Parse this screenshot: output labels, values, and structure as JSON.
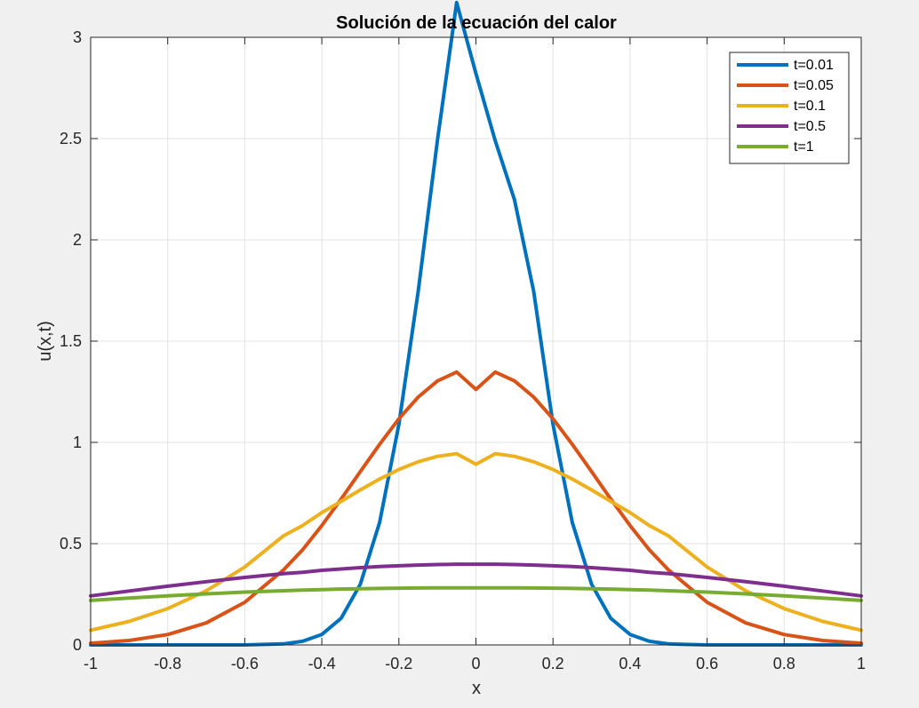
{
  "chart_data": {
    "type": "line",
    "title": "Solución de la ecuación del calor",
    "xlabel": "x",
    "ylabel": "u(x,t)",
    "xlim": [
      -1,
      1
    ],
    "ylim": [
      0,
      3
    ],
    "xticks": [
      -1,
      -0.8,
      -0.6,
      -0.4,
      -0.2,
      0,
      0.2,
      0.4,
      0.6,
      0.8,
      1
    ],
    "xtick_labels": [
      "-1",
      "-0.8",
      "-0.6",
      "-0.4",
      "-0.2",
      "0",
      "0.2",
      "0.4",
      "0.6",
      "0.8",
      "1"
    ],
    "yticks": [
      0,
      0.5,
      1,
      1.5,
      2,
      2.5,
      3
    ],
    "ytick_labels": [
      "0",
      "0.5",
      "1",
      "1.5",
      "2",
      "2.5",
      "3"
    ],
    "grid": true,
    "legend_position": "top-right",
    "x": [
      -1,
      -0.9,
      -0.8,
      -0.7,
      -0.6,
      -0.5,
      -0.45,
      -0.4,
      -0.35,
      -0.3,
      -0.25,
      -0.2,
      -0.15,
      -0.1,
      -0.05,
      0,
      0.05,
      0.1,
      0.15,
      0.2,
      0.25,
      0.3,
      0.35,
      0.4,
      0.45,
      0.5,
      0.6,
      0.7,
      0.8,
      0.9,
      1
    ],
    "series": [
      {
        "name": "t=0.01",
        "color": "#0072bd",
        "values": [
          0,
          0,
          0,
          0,
          0,
          0.0053,
          0.018,
          0.0516,
          0.1317,
          0.2994,
          0.6049,
          1.0886,
          1.7453,
          2.4923,
          3.1713,
          2.8209,
          2.4894,
          2.1973,
          1.7453,
          1.0886,
          0.6049,
          0.2994,
          0.1317,
          0.0516,
          0.018,
          0.0053,
          0,
          0,
          0,
          0,
          0
        ]
      },
      {
        "name": "t=0.05",
        "color": "#d95319",
        "values": [
          0.0085,
          0.0218,
          0.0511,
          0.1088,
          0.2106,
          0.3697,
          0.4694,
          0.5896,
          0.7201,
          0.8557,
          0.9905,
          1.1166,
          1.2236,
          1.3033,
          1.3475,
          1.2616,
          1.3475,
          1.3033,
          1.2236,
          1.1166,
          0.9905,
          0.8557,
          0.7201,
          0.5896,
          0.4694,
          0.3697,
          0.2106,
          0.1088,
          0.0511,
          0.0218,
          0.0085
        ]
      },
      {
        "name": "t=0.1",
        "color": "#edb120",
        "values": [
          0.0729,
          0.1164,
          0.1795,
          0.2671,
          0.3845,
          0.5383,
          0.5893,
          0.6537,
          0.7087,
          0.7652,
          0.8189,
          0.8663,
          0.9045,
          0.9311,
          0.9445,
          0.8921,
          0.9445,
          0.9311,
          0.9045,
          0.8663,
          0.8189,
          0.7652,
          0.7087,
          0.6537,
          0.5893,
          0.5383,
          0.3845,
          0.2671,
          0.1795,
          0.1164,
          0.0729
        ]
      },
      {
        "name": "t=0.5",
        "color": "#7e2f8e",
        "values": [
          0.242,
          0.2661,
          0.2897,
          0.3123,
          0.3332,
          0.3521,
          0.3584,
          0.3683,
          0.3752,
          0.3814,
          0.3867,
          0.391,
          0.3944,
          0.397,
          0.3985,
          0.3989,
          0.3985,
          0.397,
          0.3944,
          0.391,
          0.3867,
          0.3814,
          0.3752,
          0.3683,
          0.3584,
          0.3521,
          0.3332,
          0.3123,
          0.2897,
          0.2661,
          0.242
        ]
      },
      {
        "name": "t=1",
        "color": "#77ac30",
        "values": [
          0.2196,
          0.2315,
          0.2425,
          0.2523,
          0.2608,
          0.2677,
          0.2708,
          0.2734,
          0.2757,
          0.2776,
          0.2791,
          0.2803,
          0.2812,
          0.2817,
          0.282,
          0.2821,
          0.282,
          0.2817,
          0.2812,
          0.2803,
          0.2791,
          0.2776,
          0.2757,
          0.2734,
          0.2708,
          0.2677,
          0.2608,
          0.2523,
          0.2425,
          0.2315,
          0.2196
        ]
      }
    ]
  }
}
